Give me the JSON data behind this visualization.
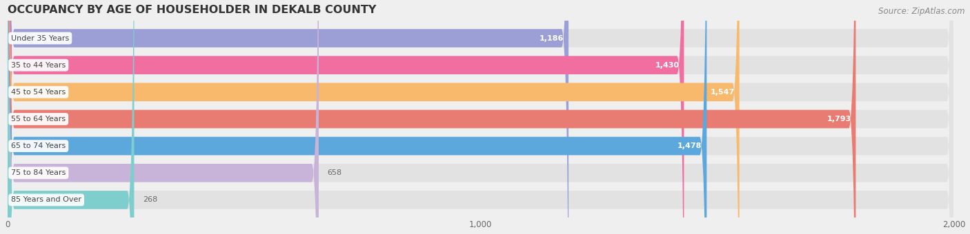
{
  "title": "OCCUPANCY BY AGE OF HOUSEHOLDER IN DEKALB COUNTY",
  "source": "Source: ZipAtlas.com",
  "categories": [
    "Under 35 Years",
    "35 to 44 Years",
    "45 to 54 Years",
    "55 to 64 Years",
    "65 to 74 Years",
    "75 to 84 Years",
    "85 Years and Over"
  ],
  "values": [
    1186,
    1430,
    1547,
    1793,
    1478,
    658,
    268
  ],
  "bar_colors": [
    "#9b9fd6",
    "#f06ea0",
    "#f9b96c",
    "#e87b72",
    "#5ca8dc",
    "#c8b4d8",
    "#7ecece"
  ],
  "value_inside": [
    true,
    true,
    true,
    true,
    true,
    false,
    false
  ],
  "xlim": [
    0,
    2000
  ],
  "xticks": [
    0,
    1000,
    2000
  ],
  "background_color": "#efefef",
  "bar_bg_color": "#e2e2e2",
  "title_fontsize": 11.5,
  "source_fontsize": 8.5,
  "bar_height": 0.68,
  "label_fontsize": 8.0,
  "value_fontsize": 8.0
}
